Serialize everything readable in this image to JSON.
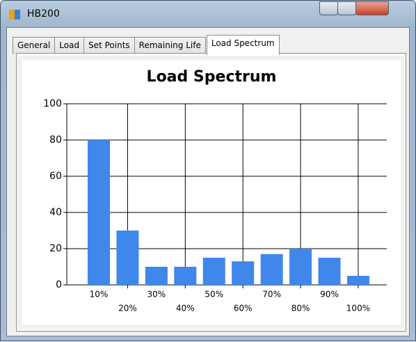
{
  "window_title": "HB200",
  "tabs": [
    "General",
    "Load",
    "Set Points",
    "Remaining Life",
    "Load Spectrum"
  ],
  "chart_data": {
    "type": "bar",
    "title": "Load Spectrum",
    "categories": [
      "10%",
      "20%",
      "30%",
      "40%",
      "50%",
      "60%",
      "70%",
      "80%",
      "90%",
      "100%"
    ],
    "values": [
      80,
      30,
      10,
      10,
      15,
      13,
      17,
      20,
      15,
      5
    ],
    "color": "#3f87ea",
    "ylim": [
      0,
      100
    ],
    "yticks": [
      0,
      20,
      40,
      60,
      80,
      100
    ],
    "grid": true
  }
}
